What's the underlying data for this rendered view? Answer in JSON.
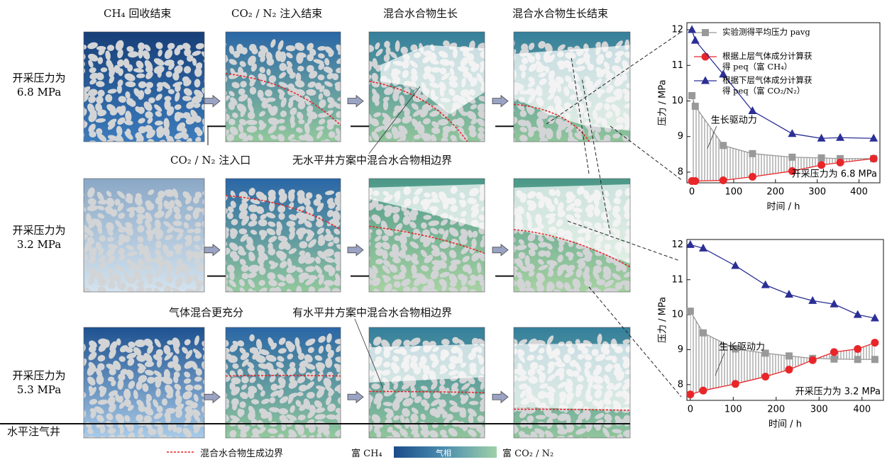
{
  "figure": {
    "columns": [
      "CH₄ 回收结束",
      "CO₂ / N₂ 注入结束",
      "混合水合物生长",
      "混合水合物生长结束"
    ],
    "rows": [
      "开采压力为 6.8 MPa",
      "开采压力为 3.2 MPa",
      "开采压力为 5.3 MPa"
    ],
    "well_label": "水平注气井",
    "inlet_label": "CO₂ / N₂ 注入口",
    "boundary_no_well": "无水平井方案中混合水合物相边界",
    "better_mixing": "气体混合更充分",
    "boundary_with_well": "有水平井方案中混合水合物相边界",
    "legend": {
      "boundary": "混合水合物生成边界",
      "rich_ch4": "富 CH₄",
      "gas_phase": "气相",
      "rich_co2": "富 CO₂ / N₂"
    }
  },
  "chart_data": [
    {
      "type": "line",
      "xlabel": "时间 / h",
      "ylabel": "压力 / MPa",
      "drive_label": "生长驱动力",
      "condition_label": "开采压力为 6.8 MPa",
      "x": [
        0,
        8,
        75,
        145,
        240,
        310,
        355,
        435
      ],
      "series": [
        {
          "name": "实验测得平均压力 pavg",
          "color": "#999999",
          "marker": "square",
          "values": [
            10.15,
            9.85,
            8.75,
            8.52,
            8.42,
            8.4,
            8.38,
            8.38
          ]
        },
        {
          "name": "根据上层气体成分计算获得 peq（富 CH₄）",
          "color": "#e8262a",
          "marker": "circle",
          "values": [
            7.75,
            7.75,
            7.77,
            7.87,
            8.03,
            8.2,
            8.27,
            8.38
          ]
        },
        {
          "name": "根据下层气体成分计算获得 peq（富 CO₂/N₂）",
          "color": "#2b2f95",
          "marker": "triangle",
          "values": [
            12.0,
            11.7,
            10.75,
            9.72,
            9.08,
            8.95,
            8.97,
            8.95
          ]
        }
      ],
      "xlim": [
        -12,
        450
      ],
      "ylim": [
        7.7,
        12.2
      ],
      "xticks": [
        0,
        100,
        200,
        300,
        400
      ],
      "yticks": [
        8,
        9,
        10,
        11,
        12
      ],
      "legend": "upper right"
    },
    {
      "type": "line",
      "xlabel": "时间 / h",
      "ylabel": "压力 / MPa",
      "drive_label": "生长驱动力",
      "condition_label": "开采压力为 3.2 MPa",
      "x": [
        0,
        30,
        105,
        175,
        230,
        285,
        335,
        390,
        430
      ],
      "series": [
        {
          "color": "#999999",
          "marker": "square",
          "values": [
            10.1,
            9.48,
            9.02,
            8.9,
            8.82,
            8.75,
            8.73,
            8.72,
            8.72
          ]
        },
        {
          "color": "#e8262a",
          "marker": "circle",
          "values": [
            7.72,
            7.83,
            8.02,
            8.23,
            8.43,
            8.7,
            8.93,
            9.02,
            9.2
          ]
        },
        {
          "color": "#2b2f95",
          "marker": "triangle",
          "values": [
            12.0,
            11.9,
            11.4,
            10.85,
            10.58,
            10.4,
            10.3,
            10.0,
            9.9
          ]
        }
      ],
      "xlim": [
        -8,
        450
      ],
      "ylim": [
        7.55,
        12.15
      ],
      "xticks": [
        0,
        100,
        200,
        300,
        400
      ],
      "yticks": [
        8,
        9,
        10,
        11,
        12
      ]
    }
  ]
}
